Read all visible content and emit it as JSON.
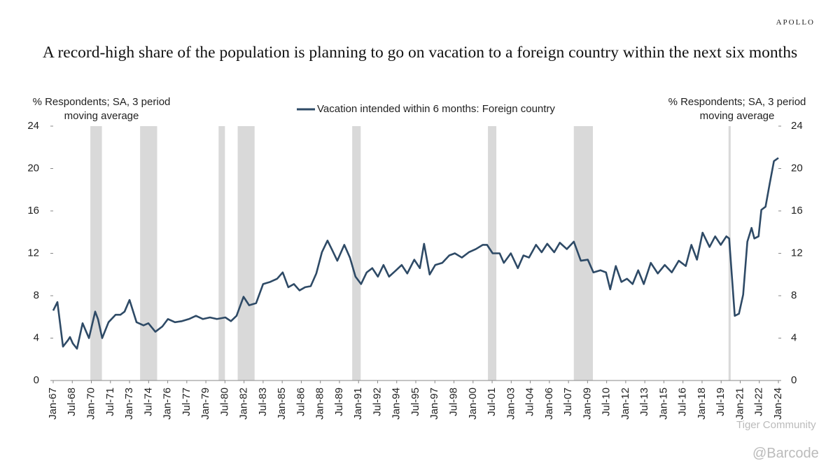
{
  "brand": "APOLLO",
  "chart_data": {
    "type": "line",
    "title": "A record-high share of the population is planning to go on vacation to a foreign country within the next six months",
    "y_label": "% Respondents; SA, 3 period moving average",
    "y2_label": "% Respondents; SA, 3 period moving average",
    "ylim": [
      0,
      24
    ],
    "yticks": [
      0,
      4,
      8,
      12,
      16,
      20,
      24
    ],
    "y2lim": [
      0,
      24
    ],
    "y2ticks": [
      0,
      4,
      8,
      12,
      16,
      20,
      24
    ],
    "xlim": [
      1967,
      2024
    ],
    "xticks": [
      {
        "value": 1967,
        "label": "Jan-67"
      },
      {
        "value": 1968.5,
        "label": "Jul-68"
      },
      {
        "value": 1970,
        "label": "Jan-70"
      },
      {
        "value": 1971.5,
        "label": "Jul-71"
      },
      {
        "value": 1973,
        "label": "Jan-73"
      },
      {
        "value": 1974.5,
        "label": "Jul-74"
      },
      {
        "value": 1976,
        "label": "Jan-76"
      },
      {
        "value": 1977.5,
        "label": "Jul-77"
      },
      {
        "value": 1979,
        "label": "Jan-79"
      },
      {
        "value": 1980.5,
        "label": "Jul-80"
      },
      {
        "value": 1982,
        "label": "Jan-82"
      },
      {
        "value": 1983.5,
        "label": "Jul-83"
      },
      {
        "value": 1985,
        "label": "Jan-85"
      },
      {
        "value": 1986.5,
        "label": "Jul-86"
      },
      {
        "value": 1988,
        "label": "Jan-88"
      },
      {
        "value": 1989.5,
        "label": "Jul-89"
      },
      {
        "value": 1991,
        "label": "Jan-91"
      },
      {
        "value": 1992.5,
        "label": "Jul-92"
      },
      {
        "value": 1994,
        "label": "Jan-94"
      },
      {
        "value": 1995.5,
        "label": "Jul-95"
      },
      {
        "value": 1997,
        "label": "Jan-97"
      },
      {
        "value": 1998.5,
        "label": "Jul-98"
      },
      {
        "value": 2000,
        "label": "Jan-00"
      },
      {
        "value": 2001.5,
        "label": "Jul-01"
      },
      {
        "value": 2003,
        "label": "Jan-03"
      },
      {
        "value": 2004.5,
        "label": "Jul-04"
      },
      {
        "value": 2006,
        "label": "Jan-06"
      },
      {
        "value": 2007.5,
        "label": "Jul-07"
      },
      {
        "value": 2009,
        "label": "Jan-09"
      },
      {
        "value": 2010.5,
        "label": "Jul-10"
      },
      {
        "value": 2012,
        "label": "Jan-12"
      },
      {
        "value": 2013.5,
        "label": "Jul-13"
      },
      {
        "value": 2015,
        "label": "Jan-15"
      },
      {
        "value": 2016.5,
        "label": "Jul-16"
      },
      {
        "value": 2018,
        "label": "Jan-18"
      },
      {
        "value": 2019.5,
        "label": "Jul-19"
      },
      {
        "value": 2021,
        "label": "Jan-21"
      },
      {
        "value": 2022.5,
        "label": "Jul-22"
      },
      {
        "value": 2024,
        "label": "Jan-24"
      }
    ],
    "recessions": [
      [
        1969.92,
        1970.83
      ],
      [
        1973.83,
        1975.17
      ],
      [
        1980.0,
        1980.5
      ],
      [
        1981.5,
        1982.83
      ],
      [
        1990.5,
        1991.17
      ],
      [
        2001.17,
        2001.83
      ],
      [
        2007.92,
        2009.42
      ],
      [
        2020.08,
        2020.25
      ]
    ],
    "recession_color": "#d9d9d9",
    "x": [
      1967.0,
      1967.33,
      1967.77,
      1968.16,
      1968.32,
      1968.54,
      1968.87,
      1969.31,
      1969.81,
      1970.3,
      1970.52,
      1970.85,
      1971.35,
      1971.9,
      1972.28,
      1972.61,
      1973.0,
      1973.55,
      1974.1,
      1974.48,
      1975.03,
      1975.58,
      1976.02,
      1976.57,
      1977.12,
      1977.67,
      1978.22,
      1978.77,
      1979.32,
      1979.87,
      1980.53,
      1980.97,
      1981.41,
      1981.96,
      1982.4,
      1982.95,
      1983.5,
      1984.05,
      1984.6,
      1985.04,
      1985.48,
      1985.92,
      1986.36,
      1986.8,
      1987.24,
      1987.68,
      1988.12,
      1988.56,
      1988.89,
      1989.33,
      1989.88,
      1990.32,
      1990.76,
      1991.2,
      1991.64,
      1992.08,
      1992.52,
      1992.96,
      1993.4,
      1993.95,
      1994.39,
      1994.83,
      1995.38,
      1995.82,
      1996.15,
      1996.59,
      1997.03,
      1997.58,
      1998.13,
      1998.57,
      1999.12,
      1999.67,
      2000.22,
      2000.77,
      2001.1,
      2001.54,
      2002.09,
      2002.42,
      2002.97,
      2003.52,
      2003.96,
      2004.4,
      2004.95,
      2005.39,
      2005.83,
      2006.38,
      2006.82,
      2007.37,
      2007.92,
      2008.47,
      2009.02,
      2009.46,
      2010.01,
      2010.45,
      2010.78,
      2011.22,
      2011.66,
      2012.1,
      2012.54,
      2012.98,
      2013.42,
      2013.97,
      2014.52,
      2015.07,
      2015.62,
      2016.17,
      2016.72,
      2017.16,
      2017.6,
      2018.04,
      2018.59,
      2019.03,
      2019.47,
      2019.91,
      2020.13,
      2020.57,
      2020.9,
      2021.23,
      2021.56,
      2021.89,
      2022.11,
      2022.44,
      2022.66,
      2022.99,
      2023.32,
      2023.65,
      2024.0
    ],
    "series": [
      {
        "name": "Vacation intended within 6 months: Foreign country",
        "color": "#2e4a66",
        "values": [
          6.6,
          7.4,
          3.2,
          3.8,
          4.1,
          3.5,
          3.0,
          5.4,
          4.0,
          6.5,
          5.8,
          4.0,
          5.5,
          6.2,
          6.2,
          6.5,
          7.6,
          5.5,
          5.2,
          5.4,
          4.6,
          5.1,
          5.8,
          5.5,
          5.6,
          5.8,
          6.1,
          5.8,
          5.95,
          5.8,
          5.95,
          5.6,
          6.1,
          7.9,
          7.1,
          7.3,
          9.1,
          9.3,
          9.6,
          10.2,
          8.8,
          9.1,
          8.5,
          8.8,
          8.9,
          10.1,
          12.1,
          13.2,
          12.4,
          11.3,
          12.8,
          11.6,
          9.8,
          9.1,
          10.2,
          10.6,
          9.8,
          10.9,
          9.8,
          10.4,
          10.9,
          10.1,
          11.4,
          10.6,
          12.9,
          10.0,
          10.9,
          11.1,
          11.8,
          12.0,
          11.6,
          12.1,
          12.4,
          12.8,
          12.8,
          12.0,
          12.0,
          11.1,
          12.0,
          10.6,
          11.8,
          11.6,
          12.8,
          12.1,
          12.9,
          12.1,
          13.0,
          12.4,
          13.1,
          11.3,
          11.4,
          10.2,
          10.4,
          10.2,
          8.6,
          10.8,
          9.3,
          9.6,
          9.1,
          10.4,
          9.1,
          11.1,
          10.1,
          10.9,
          10.2,
          11.3,
          10.8,
          12.8,
          11.4,
          13.95,
          12.6,
          13.6,
          12.8,
          13.6,
          13.4,
          6.1,
          6.3,
          8.1,
          13.1,
          14.4,
          13.4,
          13.6,
          16.1,
          16.4,
          18.6,
          20.7,
          21.0
        ]
      }
    ]
  },
  "watermarks": [
    "Tiger Community",
    "@Barcode"
  ]
}
